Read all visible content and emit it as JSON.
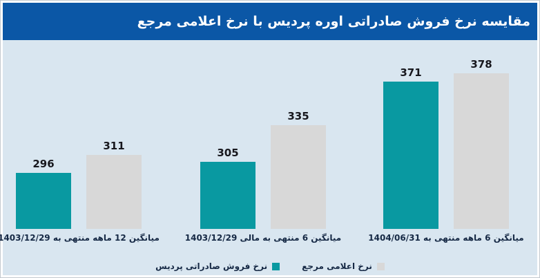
{
  "header": {
    "title": "مقایسه نرخ فروش صادراتی اوره پردیس با نرخ اعلامی مرجع",
    "bg_color": "#0b57a6",
    "text_color": "#ffffff"
  },
  "chart_data": {
    "type": "bar",
    "direction": "rtl",
    "title": "مقایسه نرخ فروش صادراتی اوره پردیس با نرخ اعلامی مرجع",
    "categories": [
      "میانگین 12 ماهه منتهی به 1403/12/29",
      "میانگین 6 منتهی به مالی 1403/12/29",
      "میانگین 6 ماهه منتهی به 1404/06/31"
    ],
    "series": [
      {
        "key": "pardis-export-rate",
        "name": "نرخ فروش صادراتی پردیس",
        "color": "#0999a1",
        "values": [
          296,
          305,
          371
        ]
      },
      {
        "key": "reference-announced-rate",
        "name": "نرخ اعلامی مرجع",
        "color": "#d8d8d8",
        "values": [
          311,
          335,
          378
        ]
      }
    ],
    "ylim": [
      250,
      385
    ],
    "grid": false,
    "value_labels": true,
    "legend_position": "bottom",
    "background": "#d9e6f0"
  },
  "colors": {
    "header_bg": "#0b57a6",
    "chart_bg": "#d9e6f0",
    "value_label": "#17171d",
    "category_label": "#162945",
    "frame_border": "#c3c9cf"
  }
}
